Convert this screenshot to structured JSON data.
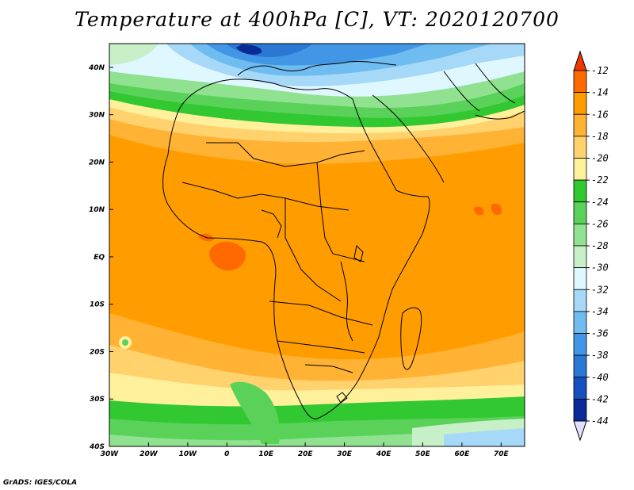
{
  "title": "Temperature at 400hPa [C], VT: 2020120700",
  "footer": "GrADS: IGES/COLA",
  "map": {
    "lon_range": [
      -30,
      76
    ],
    "lat_range": [
      -40,
      45
    ],
    "x_ticks": [
      {
        "value": -30,
        "label": "30W"
      },
      {
        "value": -20,
        "label": "20W"
      },
      {
        "value": -10,
        "label": "10W"
      },
      {
        "value": 0,
        "label": "0"
      },
      {
        "value": 10,
        "label": "10E"
      },
      {
        "value": 20,
        "label": "20E"
      },
      {
        "value": 30,
        "label": "30E"
      },
      {
        "value": 40,
        "label": "40E"
      },
      {
        "value": 50,
        "label": "50E"
      },
      {
        "value": 60,
        "label": "60E"
      },
      {
        "value": 70,
        "label": "70E"
      }
    ],
    "y_ticks": [
      {
        "value": 40,
        "label": "40N"
      },
      {
        "value": 30,
        "label": "30N"
      },
      {
        "value": 20,
        "label": "20N"
      },
      {
        "value": 10,
        "label": "10N"
      },
      {
        "value": 0,
        "label": "EQ"
      },
      {
        "value": -10,
        "label": "10S"
      },
      {
        "value": -20,
        "label": "20S"
      },
      {
        "value": -30,
        "label": "30S"
      },
      {
        "value": -40,
        "label": "40S"
      }
    ]
  },
  "colorbar": {
    "labels": [
      "-12",
      "-14",
      "-16",
      "-18",
      "-20",
      "-22",
      "-24",
      "-26",
      "-28",
      "-30",
      "-32",
      "-34",
      "-36",
      "-38",
      "-40",
      "-42",
      "-44"
    ],
    "colors": [
      "#ee3a00",
      "#ff6a00",
      "#ff9d00",
      "#ffb233",
      "#ffd26e",
      "#fff09b",
      "#32c832",
      "#5ad25a",
      "#90e190",
      "#c8f0c8",
      "#dff7ff",
      "#a6d8f8",
      "#6fbcf0",
      "#4296e6",
      "#2a77d4",
      "#1450be",
      "#0a2a96",
      "#09126e",
      "#e0e0ff"
    ]
  }
}
